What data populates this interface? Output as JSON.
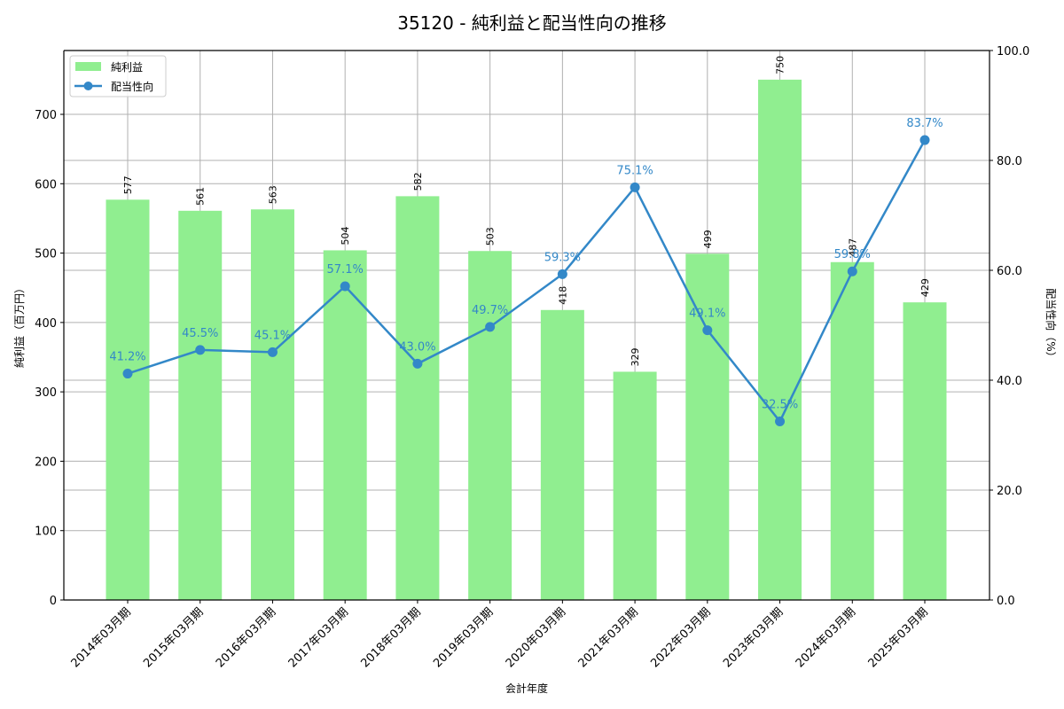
{
  "chart_data": {
    "type": "bar",
    "title": "35120 - 純利益と配当性向の推移",
    "xlabel": "会計年度",
    "ylabel": "純利益（百万円）",
    "y2label": "配当性向（%）",
    "categories": [
      "2014年03月期",
      "2015年03月期",
      "2016年03月期",
      "2017年03月期",
      "2018年03月期",
      "2019年03月期",
      "2020年03月期",
      "2021年03月期",
      "2022年03月期",
      "2023年03月期",
      "2024年03月期",
      "2025年03月期"
    ],
    "series": [
      {
        "name": "純利益",
        "type": "bar",
        "axis": "left",
        "color": "#90ee90",
        "values": [
          577,
          561,
          563,
          504,
          582,
          503,
          418,
          329,
          499,
          750,
          487,
          429
        ]
      },
      {
        "name": "配当性向",
        "type": "line",
        "axis": "right",
        "color": "#3388c8",
        "values": [
          41.2,
          45.5,
          45.1,
          57.1,
          43.0,
          49.7,
          59.3,
          75.1,
          49.1,
          32.5,
          59.8,
          83.7
        ]
      }
    ],
    "ylim": [
      0,
      792
    ],
    "y2lim": [
      0,
      100
    ],
    "yticks": [
      0,
      100,
      200,
      300,
      400,
      500,
      600,
      700
    ],
    "y2ticks": [
      "0.0",
      "20.0",
      "40.0",
      "60.0",
      "80.0",
      "100.0"
    ],
    "grid": true,
    "legend_position": "upper left"
  },
  "legend": [
    {
      "label": "純利益",
      "kind": "bar"
    },
    {
      "label": "配当性向",
      "kind": "line"
    }
  ]
}
